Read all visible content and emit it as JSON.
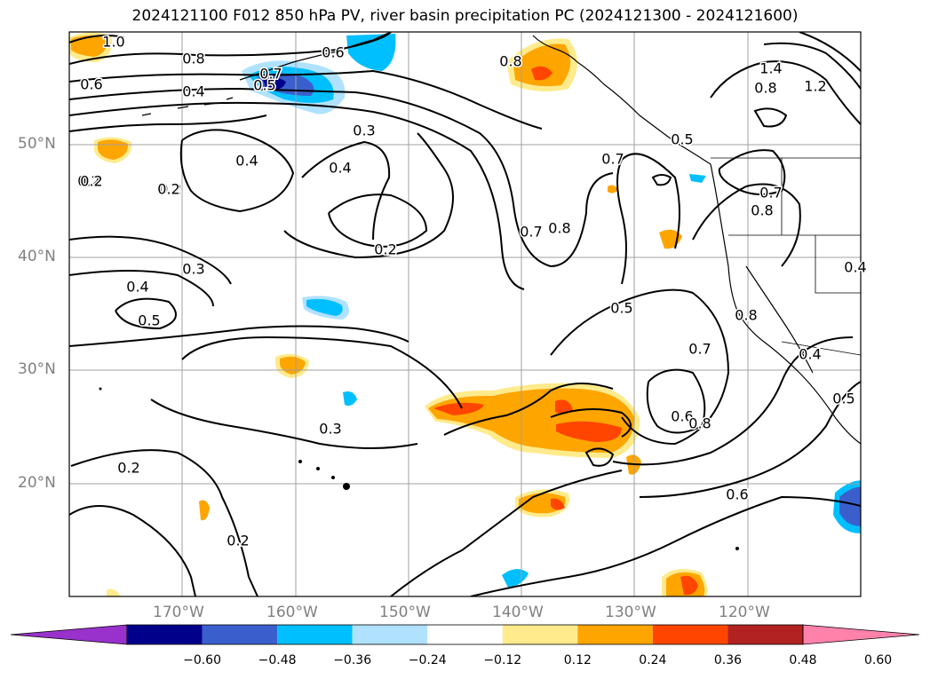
{
  "title": "2024121100 F012 850 hPa PV, river basin precipitation PC (2024121300 - 2024121600)",
  "map": {
    "lon_range": [
      -180,
      -110
    ],
    "lat_range": [
      10,
      60
    ],
    "lat_labels": [
      "50°N",
      "40°N",
      "30°N",
      "20°N"
    ],
    "lon_labels": [
      "170°W",
      "160°W",
      "150°W",
      "140°W",
      "130°W",
      "120°W"
    ],
    "contour_labels": [
      "1.0",
      "0.8",
      "0.6",
      "0.4",
      "0.7",
      "0.5",
      "0.6",
      "0.3",
      "0.4",
      "0.2",
      "0.4",
      "0.2",
      "0.2",
      "0.3",
      "0.4",
      "0.5",
      "0.2",
      "0.3",
      "0.8",
      "0.7",
      "0.8",
      "0.7",
      "0.5",
      "1.4",
      "1.2",
      "0.8",
      "0.5",
      "0.7",
      "0.8",
      "0.7",
      "0.6",
      "0.8",
      "0.8",
      "0.4",
      "0.5",
      "0.6",
      "0.2",
      "0.2",
      "0.2",
      "0.4"
    ]
  },
  "colorbar": {
    "ticks": [
      "−0.60",
      "−0.48",
      "−0.36",
      "−0.24",
      "−0.12",
      "0.12",
      "0.24",
      "0.36",
      "0.48",
      "0.60"
    ],
    "colors": [
      "#9932cc",
      "#00008b",
      "#3a5fcd",
      "#00bfff",
      "#b0e2ff",
      "#ffffff",
      "#ffeb8c",
      "#ffa500",
      "#ff4500",
      "#b22222",
      "#ff82ab"
    ]
  }
}
